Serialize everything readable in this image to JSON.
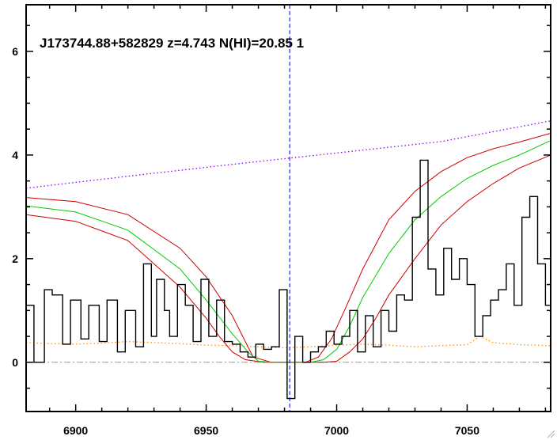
{
  "chart_data": {
    "type": "line",
    "title": "J173744.88+582829 z=4.743 N(HI)=20.85 1",
    "xlabel": "",
    "ylabel": "",
    "xlim": [
      6881,
      7082
    ],
    "ylim": [
      -0.95,
      6.9
    ],
    "x_ticks": [
      6900,
      6950,
      7000,
      7050
    ],
    "y_ticks": [
      0,
      2,
      4,
      6
    ],
    "x_tick_labels": [
      "6900",
      "6950",
      "7000",
      "7050"
    ],
    "y_tick_labels": [
      "0",
      "2",
      "4",
      "6"
    ],
    "marker_x": 6982,
    "zero_level": 0,
    "colors": {
      "flux": "#000000",
      "error": "#ff8c1a",
      "continuum": "#8800ff",
      "model_best": "#00cc00",
      "model_bounds": "#cc0000",
      "marker": "#0000cc",
      "zero": "#999999"
    },
    "series": [
      {
        "key": "flux",
        "style": "step",
        "x": [
          6881,
          6884,
          6888,
          6891,
          6895,
          6898,
          6902,
          6905,
          6909,
          6912,
          6916,
          6919,
          6923,
          6926,
          6929,
          6931,
          6934,
          6936,
          6939,
          6942,
          6945,
          6948,
          6951,
          6954,
          6957,
          6960,
          6963,
          6966,
          6969,
          6972,
          6975,
          6978,
          6981,
          6984,
          6987,
          6990,
          6993,
          6996,
          6999,
          7002,
          7005,
          7008,
          7011,
          7014,
          7017,
          7020,
          7023,
          7026,
          7029,
          7032,
          7035,
          7038,
          7041,
          7044,
          7047,
          7050,
          7053,
          7056,
          7059,
          7062,
          7065,
          7068,
          7071,
          7074,
          7077,
          7080
        ],
        "y": [
          1.1,
          0.0,
          1.4,
          1.3,
          0.35,
          1.2,
          0.45,
          1.1,
          0.4,
          1.2,
          0.2,
          1.0,
          0.3,
          1.9,
          0.5,
          1.6,
          1.0,
          0.5,
          1.5,
          1.1,
          0.4,
          1.6,
          0.5,
          1.2,
          0.4,
          0.35,
          0.2,
          0.1,
          0.35,
          0.25,
          0.3,
          1.4,
          -0.7,
          0.5,
          0.0,
          0.2,
          0.3,
          0.6,
          0.35,
          0.5,
          1.0,
          0.2,
          0.9,
          0.3,
          1.0,
          0.6,
          1.3,
          1.2,
          2.8,
          3.9,
          1.8,
          1.3,
          2.2,
          1.6,
          2.0,
          1.5,
          0.5,
          0.9,
          1.2,
          1.4,
          1.9,
          1.1,
          2.8,
          3.2,
          1.9,
          1.1
        ]
      },
      {
        "key": "error",
        "style": "dotted",
        "x": [
          6881,
          6890,
          6900,
          6910,
          6920,
          6930,
          6940,
          6950,
          6960,
          6970,
          6980,
          6990,
          7000,
          7010,
          7020,
          7030,
          7040,
          7050,
          7055,
          7060,
          7070,
          7082
        ],
        "y": [
          0.38,
          0.36,
          0.35,
          0.37,
          0.4,
          0.38,
          0.36,
          0.33,
          0.32,
          0.3,
          0.28,
          0.3,
          0.33,
          0.35,
          0.33,
          0.3,
          0.32,
          0.34,
          0.5,
          0.38,
          0.34,
          0.32
        ]
      },
      {
        "key": "continuum",
        "style": "dotted",
        "x": [
          6881,
          6920,
          6960,
          7000,
          7040,
          7082
        ],
        "y": [
          3.36,
          3.59,
          3.82,
          4.04,
          4.26,
          4.66
        ]
      },
      {
        "key": "model_best",
        "style": "solid",
        "x": [
          6881,
          6900,
          6920,
          6940,
          6950,
          6960,
          6966,
          6970,
          6975,
          6990,
          6995,
          7000,
          7005,
          7010,
          7020,
          7030,
          7040,
          7050,
          7060,
          7070,
          7082
        ],
        "y": [
          3.02,
          2.9,
          2.55,
          1.8,
          1.2,
          0.55,
          0.2,
          0.02,
          0.0,
          0.0,
          0.05,
          0.25,
          0.7,
          1.25,
          2.1,
          2.75,
          3.2,
          3.55,
          3.8,
          4.0,
          4.28
        ]
      },
      {
        "key": "model_upper",
        "style": "solid",
        "x": [
          6881,
          6900,
          6920,
          6940,
          6950,
          6960,
          6964,
          6968,
          6975,
          6988,
          6993,
          6998,
          7003,
          7010,
          7020,
          7030,
          7040,
          7050,
          7060,
          7070,
          7082
        ],
        "y": [
          3.18,
          3.1,
          2.85,
          2.2,
          1.65,
          0.9,
          0.5,
          0.1,
          0.0,
          0.0,
          0.1,
          0.45,
          1.0,
          1.8,
          2.75,
          3.3,
          3.68,
          3.95,
          4.12,
          4.25,
          4.42
        ]
      },
      {
        "key": "model_lower",
        "style": "solid",
        "x": [
          6881,
          6900,
          6920,
          6940,
          6950,
          6955,
          6960,
          6965,
          6972,
          6995,
          7000,
          7005,
          7010,
          7015,
          7020,
          7030,
          7040,
          7050,
          7060,
          7070,
          7082
        ],
        "y": [
          2.85,
          2.72,
          2.35,
          1.45,
          0.85,
          0.5,
          0.2,
          0.05,
          0.0,
          0.0,
          0.02,
          0.2,
          0.45,
          0.85,
          1.3,
          2.0,
          2.65,
          3.1,
          3.45,
          3.75,
          4.0
        ]
      }
    ]
  }
}
